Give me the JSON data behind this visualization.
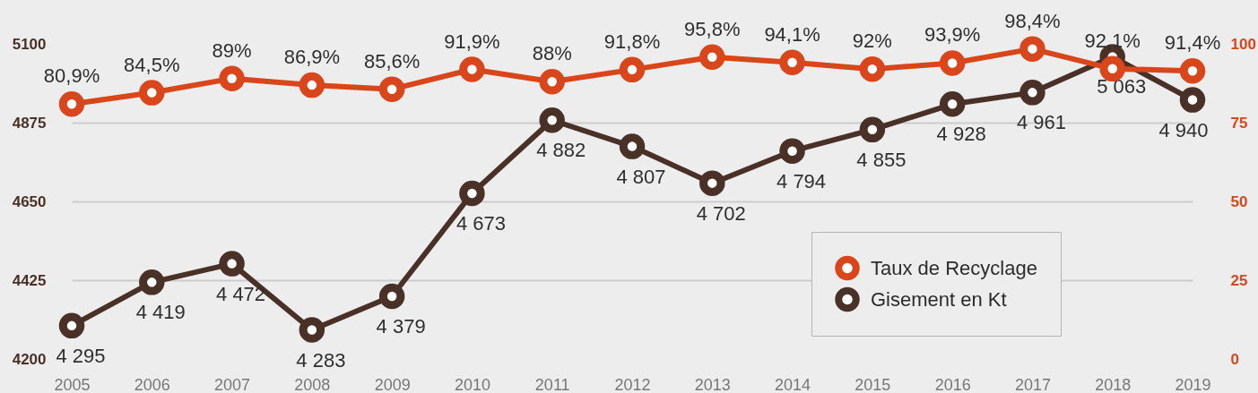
{
  "chart_data": {
    "type": "line",
    "categories": [
      "2005",
      "2006",
      "2007",
      "2008",
      "2009",
      "2010",
      "2011",
      "2012",
      "2013",
      "2014",
      "2015",
      "2016",
      "2017",
      "2018",
      "2019"
    ],
    "series": [
      {
        "name": "Taux de Recyclage",
        "color": "#d9461b",
        "axis": "y2",
        "values": [
          80.9,
          84.5,
          89,
          86.9,
          85.6,
          91.9,
          88,
          91.8,
          95.8,
          94.1,
          92,
          93.9,
          98.4,
          92.1,
          91.4
        ],
        "value_labels": [
          "80,9%",
          "84,5%",
          "89%",
          "86,9%",
          "85,6%",
          "91,9%",
          "88%",
          "91,8%",
          "95,8%",
          "94,1%",
          "92%",
          "93,9%",
          "98,4%",
          "92,1%",
          "91,4%"
        ]
      },
      {
        "name": "Gisement en Kt",
        "color": "#4a3127",
        "axis": "y",
        "values": [
          4295,
          4419,
          4472,
          4283,
          4379,
          4673,
          4882,
          4807,
          4702,
          4794,
          4855,
          4928,
          4961,
          5063,
          4940
        ],
        "value_labels": [
          "4 295",
          "4 419",
          "4 472",
          "4 283",
          "4 379",
          "4 673",
          "4 882",
          "4 807",
          "4 702",
          "4 794",
          "4 855",
          "4 928",
          "4 961",
          "5 063",
          "4 940"
        ]
      }
    ],
    "ylim": [
      4200,
      5100
    ],
    "yticks": [
      4200,
      4425,
      4650,
      4875,
      5100
    ],
    "y2lim": [
      0,
      100
    ],
    "y2ticks": [
      0,
      25,
      50,
      75,
      100
    ],
    "grid": "y",
    "legend": "bottom right",
    "marker": "circle",
    "line_style": "solid"
  }
}
